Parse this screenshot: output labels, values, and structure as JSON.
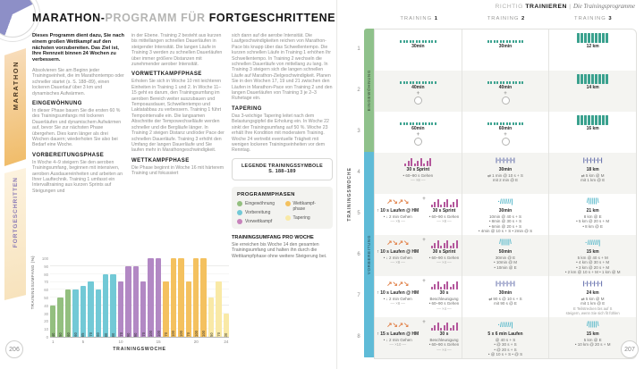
{
  "pages": {
    "left_number": "206",
    "right_number": "207"
  },
  "left": {
    "tabs": {
      "category": "MARATHON",
      "level": "FORTGESCHRITTEN"
    },
    "title": {
      "bold1": "MARATHON-",
      "light": "PROGRAMM FÜR ",
      "bold2": "FORTGESCHRITTENE"
    },
    "columns": [
      [
        {
          "t": "lead",
          "text": "Dieses Programm dient dazu, Sie nach einem großen Wettkampf auf den nächsten vorzubereiten. Das Ziel ist, Ihre Rennzeit binnen 24 Wochen zu verbessern."
        },
        {
          "t": "p",
          "text": "Absolvieren Sie am Beginn jeder Trainingseinheit, die im Marathontempo oder schneller startet (s. S. 188–89), einen lockeren Dauerlauf über 3 km und dynamisches Aufwärmen."
        },
        {
          "t": "h",
          "text": "EINGEWÖHNUNG"
        },
        {
          "t": "p",
          "text": "In dieser Phase bauen Sie die ersten 60 % des Trainingsumfangs mit lockeren Dauerläufen und dynamischem Aufwärmen auf, bevor Sie zur nächsten Phase übergehen. Dies kann länger als drei Wochen dauern; wiederholen Sie also bei Bedarf eine Woche."
        },
        {
          "t": "h",
          "text": "VORBEREITUNGSPHASE"
        },
        {
          "t": "p",
          "text": "In Woche 4–9 steigern Sie den aeroben Trainingsumfang, beginnen mit intensiven, aeroben Ausdauereinheiten und arbeiten an Ihrer Lauftechnik. Training 1 umfasst ein Intervalltraining aus kurzen Sprints auf Steigungen und"
        }
      ],
      [
        {
          "t": "p",
          "text": "in der Ebene. Training 2 besteht aus kurzen bis mittellangen schnellen Dauerläufen in steigender Intensität. Die langen Läufe in Training 3 werden zu schnellen Dauerläufen über immer größere Distanzen mit zunehmender aerober Intensität."
        },
        {
          "t": "h",
          "text": "VORWETTKAMPFPHASE"
        },
        {
          "t": "p",
          "text": "Erholen Sie sich in Woche 10 mit leichteren Einheiten in Training 1 und 2. In Woche 11–15 geht es darum, den Trainingsumfang im aeroben Bereich weiter auszubauen und Tempoausdauer, Schwellentempo und Laktatabbau zu verbessern. Training 1 führt Tempointervalle ein. Die langsamen Abschnitte der Tempowechselläufe werden schneller und die Bergläufe länger. In Training 2 steigen Distanz und/oder Pace der schnellen Dauerläufe. Training 3 erhöht den Umfang der langen Dauerläufe und Sie laufen mehr in Marathongeschwindigkeit."
        },
        {
          "t": "h",
          "text": "WETTKAMPFPHASE"
        },
        {
          "t": "p",
          "text": "Die Phase beginnt in Woche 16 mit härterem Training und fokussiert"
        }
      ],
      [
        {
          "t": "p",
          "text": "sich dann auf die aerobe Intensität. Die Laufgeschwindigkeiten reichen von Marathon-Pace bis knapp über das Schwellentempo. Die kurzen schnellen Läufe in Training 1 erhöhen Ihr Schwellentempo. In Training 2 wechseln die schnellen Dauerläufe von mittellang zu lang. In Training 3 steigern sich die langen schnellen Läufe auf Marathon-Zielgeschwindigkeit. Planen Sie in den Wochen 17, 19 und 21 zwischen den Läufen in Marathon-Pace von Training 2 und den langen Dauerläufen von Training 3 je 2–3 Ruhetage ein."
        },
        {
          "t": "h",
          "text": "TAPERING"
        },
        {
          "t": "p",
          "text": "Das 3-wöchige Tapering leitet nach dem Belastungsgipfel die Erholung ein. In Woche 22 sinkt der Trainingsumfang auf 50 %. Woche 23 erhält Ihre Kondition mit moderatem Training. Woche 24 vertreibt eventuelle Trägheit mit wenigen lockeren Trainingseinheiten vor dem Renntag."
        }
      ]
    ],
    "legend_box": {
      "line1": "LEGENDE TRAININGSSYMBOLE",
      "line2": "S. 188–189"
    },
    "phases_box": {
      "title": "PROGRAMMPHASEN",
      "items": [
        {
          "label": "Eingewöhnung",
          "color": "#93bf7f"
        },
        {
          "label": "Vorbereitung",
          "color": "#72c9d6"
        },
        {
          "label": "Vorwettkampf",
          "color": "#c783bb"
        },
        {
          "label": "Wettkampf-phase",
          "color": "#f4c15f"
        },
        {
          "label": "Tapering",
          "color": "#f9e9a6"
        }
      ]
    },
    "chart_note": {
      "title": "TRAININGSUMFANG PRO WOCHE",
      "text": "Sie erreichen bis Woche 14 den gesamten Trainingsumfang und halten ihn durch die Wettkampfphase ohne weitere Steigerung bei."
    }
  },
  "chart_data": {
    "type": "bar",
    "title": "",
    "xlabel": "TRAININGSWOCHE",
    "ylabel": "TRAININGSUMFANG (%)",
    "ylim": [
      0,
      100
    ],
    "y_ticks": [
      0,
      10,
      20,
      30,
      40,
      50,
      60,
      70,
      80,
      90,
      100
    ],
    "x_ticks": [
      1,
      5,
      10,
      15,
      20,
      24
    ],
    "categories": [
      1,
      2,
      3,
      4,
      5,
      6,
      7,
      8,
      9,
      10,
      11,
      12,
      13,
      14,
      15,
      16,
      17,
      18,
      19,
      20,
      21,
      22,
      23,
      24
    ],
    "values": [
      40,
      50,
      60,
      60,
      65,
      70,
      60,
      80,
      80,
      70,
      90,
      90,
      70,
      100,
      100,
      70,
      100,
      100,
      70,
      100,
      100,
      50,
      70,
      30
    ],
    "bar_phase": [
      0,
      0,
      0,
      1,
      1,
      1,
      1,
      1,
      1,
      2,
      2,
      2,
      2,
      2,
      2,
      3,
      3,
      3,
      3,
      3,
      3,
      4,
      4,
      4
    ],
    "phases": [
      {
        "name": "Eingewöhnung",
        "weeks": "1–3",
        "color": "#93bf7f"
      },
      {
        "name": "Vorbereitung",
        "weeks": "4–9",
        "color": "#72c9d6"
      },
      {
        "name": "Vorwettkampf",
        "weeks": "10–15",
        "color": "#b288c4"
      },
      {
        "name": "Wettkampfphase",
        "weeks": "16–21",
        "color": "#f4c15f"
      },
      {
        "name": "Tapering",
        "weeks": "22–24",
        "color": "#f9e9a6"
      }
    ],
    "legend_position": "right",
    "grid": true
  },
  "right": {
    "header": {
      "light": "RICHTIG ",
      "bold": "TRAINIEREN",
      "sep": " | ",
      "italic": "Die Trainingsprogramme"
    },
    "rail": {
      "axis_label": "TRAININGSWOCHE",
      "phases": [
        {
          "label": "EINGEWÖHNUNG",
          "rows": 3,
          "color": "#8fc18b"
        },
        {
          "label": "VORBEREITUNG",
          "rows": 5,
          "color": "#5fbbd7"
        }
      ]
    },
    "table": {
      "headers": [
        {
          "pre": "TRAINING ",
          "num": "1"
        },
        {
          "pre": "TRAINING ",
          "num": "2"
        },
        {
          "pre": "TRAINING ",
          "num": "3"
        }
      ],
      "rows": [
        {
          "week": "1",
          "cells": [
            {
              "groups": [
                {
                  "sym": "dots",
                  "lines": [
                    "30min"
                  ]
                }
              ]
            },
            {
              "groups": [
                {
                  "sym": "dots",
                  "lines": [
                    "30min"
                  ]
                }
              ]
            },
            {
              "groups": [
                {
                  "sym": "bars",
                  "lines": [
                    "12 km"
                  ]
                }
              ]
            }
          ]
        },
        {
          "week": "2",
          "cells": [
            {
              "stack": "col",
              "groups": [
                {
                  "sym": "dots",
                  "lines": [
                    "40min"
                  ]
                },
                {
                  "sym": "circle",
                  "lines": []
                }
              ]
            },
            {
              "stack": "col",
              "groups": [
                {
                  "sym": "dots",
                  "lines": [
                    "40min"
                  ]
                },
                {
                  "sym": "circle",
                  "lines": []
                }
              ]
            },
            {
              "groups": [
                {
                  "sym": "bars",
                  "lines": [
                    "14 km"
                  ]
                }
              ]
            }
          ]
        },
        {
          "week": "3",
          "cells": [
            {
              "stack": "col",
              "groups": [
                {
                  "sym": "dots",
                  "lines": [
                    "60min"
                  ]
                },
                {
                  "sym": "circle",
                  "lines": []
                }
              ]
            },
            {
              "stack": "col",
              "groups": [
                {
                  "sym": "dots",
                  "lines": [
                    "60min"
                  ]
                },
                {
                  "sym": "circle",
                  "lines": []
                }
              ]
            },
            {
              "groups": [
                {
                  "sym": "bars",
                  "lines": [
                    "16 km"
                  ]
                }
              ]
            }
          ]
        },
        {
          "week": "4",
          "cells": [
            {
              "groups": [
                {
                  "sym": "spikes",
                  "lines": [
                    "30 s Sprint",
                    "• 60–90 s Gehen",
                    "–– ×8 ––"
                  ]
                }
              ]
            },
            {
              "groups": [
                {
                  "sym": "intervals",
                  "lines": [
                    "30min",
                    "⇄ 1 min @ 10 s + S",
                    "mit 2 min @ E"
                  ]
                }
              ]
            },
            {
              "groups": [
                {
                  "sym": "intervals",
                  "lines": [
                    "18 km",
                    "⇄ 5 km @ M",
                    "mit 1 km @ E"
                  ]
                }
              ]
            }
          ]
        },
        {
          "week": "5",
          "cells": [
            {
              "stack": "row",
              "groups": [
                {
                  "sym": "zigzag",
                  "lines": [
                    "↑ 10 s Laufen @ HM",
                    "• ↓ 2 min Gehen",
                    "–– ×5 ––"
                  ]
                },
                {
                  "sym": "spikes",
                  "lines": [
                    "30 s Sprint",
                    "• 60–90 s Gehen",
                    "–– ×8 ––"
                  ]
                }
              ]
            },
            {
              "groups": [
                {
                  "sym": "slashes",
                  "lines": [
                    "30min",
                    "10min @ 40 s + S",
                    "• 8min @ 30 s + S",
                    "• 6min @ 20 s + S",
                    "• 4min @ 10 s + S • 2min @ S"
                  ]
                }
              ]
            },
            {
              "groups": [
                {
                  "sym": "fan",
                  "lines": [
                    "21 km",
                    "8 km @ E",
                    "• 5 km @ 20 s + M",
                    "• 8 km @ E"
                  ]
                }
              ]
            }
          ]
        },
        {
          "week": "6",
          "cells": [
            {
              "stack": "row",
              "groups": [
                {
                  "sym": "zigzag",
                  "lines": [
                    "↑ 10 s Laufen @ HM",
                    "• ↓ 2 min Gehen",
                    "–– ×8 ––"
                  ]
                },
                {
                  "sym": "spikes",
                  "lines": [
                    "30 s Sprint",
                    "• 60–90 s Gehen",
                    "–– ×4 ––"
                  ]
                }
              ]
            },
            {
              "groups": [
                {
                  "sym": "fan",
                  "lines": [
                    "50min",
                    "30min @ E",
                    "• 10min @ M",
                    "• 10min @ E"
                  ]
                }
              ]
            },
            {
              "groups": [
                {
                  "sym": "slashes",
                  "lines": [
                    "15 km",
                    "5 km @ 40 s + M",
                    "• 4 km @ 30 s + M",
                    "• 3 km @ 20 s + M",
                    "• 2 km @ 10 s + M • 1 km @ M"
                  ]
                }
              ]
            }
          ]
        },
        {
          "week": "7",
          "cells": [
            {
              "stack": "row",
              "groups": [
                {
                  "sym": "zigzag",
                  "lines": [
                    "↑ 10 s Laufen @ HM",
                    "• ↓ 2 min Gehen",
                    "–– ×8 ––"
                  ]
                },
                {
                  "sym": "spikes",
                  "lines": [
                    "30 s",
                    "Beschleunigung",
                    "• 60–90 s Gehen",
                    "–– ×4 ––"
                  ]
                }
              ]
            },
            {
              "groups": [
                {
                  "sym": "intervals",
                  "lines": [
                    "30min",
                    "⇄ 90 s @ 10 s + S",
                    "mit 90 s @ E"
                  ]
                }
              ]
            },
            {
              "groups": [
                {
                  "sym": "intervals",
                  "lines": [
                    "24 km",
                    "⇄ 5 km @ M",
                    "mit 1 km @ E"
                  ],
                  "note": [
                    "E Teilstrecken bis auf S",
                    "steigern, wenn Sie sich fit fühlen"
                  ]
                }
              ]
            }
          ]
        },
        {
          "week": "8",
          "cells": [
            {
              "stack": "row",
              "groups": [
                {
                  "sym": "zigzag",
                  "lines": [
                    "↑ 15 s Laufen @ HM",
                    "• ↓ 2 min Gehen",
                    "–– ×10 ––"
                  ]
                },
                {
                  "sym": "spikes",
                  "lines": [
                    "30 s",
                    "Beschleunigung",
                    "• 60–90 s Gehen",
                    "–– ×4 ––"
                  ]
                }
              ]
            },
            {
              "groups": [
                {
                  "sym": "slashes",
                  "lines": [
                    "5 x 6 min Laufen",
                    "@ 40 s + S",
                    "• @ 30 s + S",
                    "• @ 20 s + S",
                    "• @ 10 s + S • @ S"
                  ]
                }
              ]
            },
            {
              "groups": [
                {
                  "sym": "fan",
                  "lines": [
                    "15 km",
                    "5 km @ E",
                    "• 10 km @ 20 s + M"
                  ]
                }
              ]
            }
          ]
        }
      ]
    }
  }
}
